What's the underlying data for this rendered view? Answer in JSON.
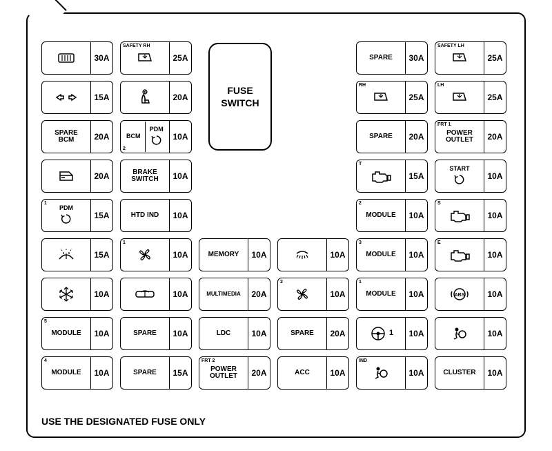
{
  "footer": "USE THE DESIGNATED FUSE ONLY",
  "fuse_switch": "FUSE\nSWITCH",
  "rows": [
    [
      {
        "icon": "defrost",
        "amp": "30A"
      },
      {
        "corner": "SAFETY RH",
        "icon": "window",
        "amp": "25A"
      },
      null,
      null,
      {
        "text": "SPARE",
        "amp": "30A"
      },
      {
        "corner": "SAFETY LH",
        "icon": "window",
        "amp": "25A"
      }
    ],
    [
      {
        "icon": "hazard",
        "amp": "15A"
      },
      {
        "icon": "seatfan",
        "amp": "20A"
      },
      null,
      null,
      {
        "corner": "RH",
        "icon": "window",
        "amp": "25A"
      },
      {
        "corner": "LH",
        "icon": "window",
        "amp": "25A"
      }
    ],
    [
      {
        "text": "SPARE\nBCM",
        "amp": "20A"
      },
      {
        "corner": "BCM",
        "corner2": "2",
        "text2": "PDM",
        "icon": "cycle",
        "amp": "10A",
        "split": true
      },
      null,
      null,
      {
        "text": "SPARE",
        "amp": "20A"
      },
      {
        "corner": "FRT 1",
        "text": "POWER\nOUTLET",
        "amp": "20A"
      }
    ],
    [
      {
        "icon": "door",
        "amp": "20A"
      },
      {
        "text": "BRAKE\nSWITCH",
        "amp": "10A"
      },
      null,
      null,
      {
        "corner": "T",
        "icon": "engine",
        "amp": "15A"
      },
      {
        "text": "START",
        "icon": "cycle",
        "amp": "10A",
        "stack": true
      }
    ],
    [
      {
        "corner": "1",
        "text": "PDM",
        "icon": "cycle",
        "amp": "15A",
        "stack": true
      },
      {
        "text": "HTD IND",
        "amp": "10A"
      },
      null,
      null,
      {
        "corner": "2",
        "text": "MODULE",
        "amp": "10A"
      },
      {
        "corner": "S",
        "icon": "engine",
        "amp": "10A"
      }
    ],
    [
      {
        "icon": "washer",
        "amp": "15A"
      },
      {
        "corner": "1",
        "icon": "fan",
        "amp": "10A"
      },
      {
        "text": "MEMORY",
        "amp": "10A"
      },
      {
        "icon": "dome",
        "amp": "10A"
      },
      {
        "corner": "3",
        "text": "MODULE",
        "amp": "10A"
      },
      {
        "corner": "E",
        "icon": "engine",
        "amp": "10A"
      }
    ],
    [
      {
        "icon": "snow",
        "amp": "10A"
      },
      {
        "icon": "rearwiper",
        "amp": "10A"
      },
      {
        "text": "MULTIMEDIA",
        "amp": "20A",
        "small": true
      },
      {
        "corner": "2",
        "icon": "fan",
        "amp": "10A"
      },
      {
        "corner": "1",
        "text": "MODULE",
        "amp": "10A"
      },
      {
        "icon": "abs",
        "amp": "10A"
      }
    ],
    [
      {
        "corner": "5",
        "text": "MODULE",
        "amp": "10A"
      },
      {
        "text": "SPARE",
        "amp": "10A"
      },
      {
        "text": "LDC",
        "amp": "10A"
      },
      {
        "text": "SPARE",
        "amp": "20A"
      },
      {
        "icon": "steering",
        "suffix": "1",
        "amp": "10A"
      },
      {
        "icon": "airbag",
        "amp": "10A"
      }
    ],
    [
      {
        "corner": "4",
        "text": "MODULE",
        "amp": "10A"
      },
      {
        "text": "SPARE",
        "amp": "15A"
      },
      {
        "corner": "FRT 2",
        "text": "POWER\nOUTLET",
        "amp": "20A"
      },
      {
        "text": "ACC",
        "amp": "10A"
      },
      {
        "corner": "IND",
        "icon": "airbag",
        "amp": "10A"
      },
      {
        "text": "CLUSTER",
        "amp": "10A"
      }
    ]
  ]
}
